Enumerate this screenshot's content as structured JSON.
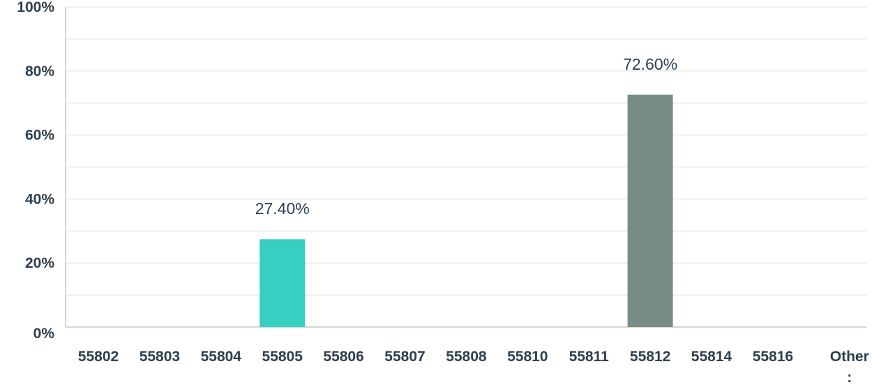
{
  "chart_data": {
    "type": "bar",
    "categories": [
      "55802",
      "55803",
      "55804",
      "55805",
      "55806",
      "55807",
      "55808",
      "55810",
      "55811",
      "55812",
      "55814",
      "55816",
      "Other\n:"
    ],
    "values": [
      0,
      0,
      0,
      27.4,
      0,
      0,
      0,
      0,
      0,
      72.6,
      0,
      0,
      0
    ],
    "data_labels": [
      "",
      "",
      "",
      "27.40%",
      "",
      "",
      "",
      "",
      "",
      "72.60%",
      "",
      "",
      ""
    ],
    "ylim": [
      0,
      100
    ],
    "yticks": [
      "0%",
      "20%",
      "40%",
      "60%",
      "80%",
      "100%"
    ],
    "ytick_values": [
      0,
      20,
      40,
      60,
      80,
      100
    ],
    "grid": true,
    "colors": {
      "55805": "#36cfc2",
      "55812": "#778c87",
      "default": "#36cfc2",
      "grid": "#e8ecdd",
      "text": "#2f3f4f"
    }
  }
}
